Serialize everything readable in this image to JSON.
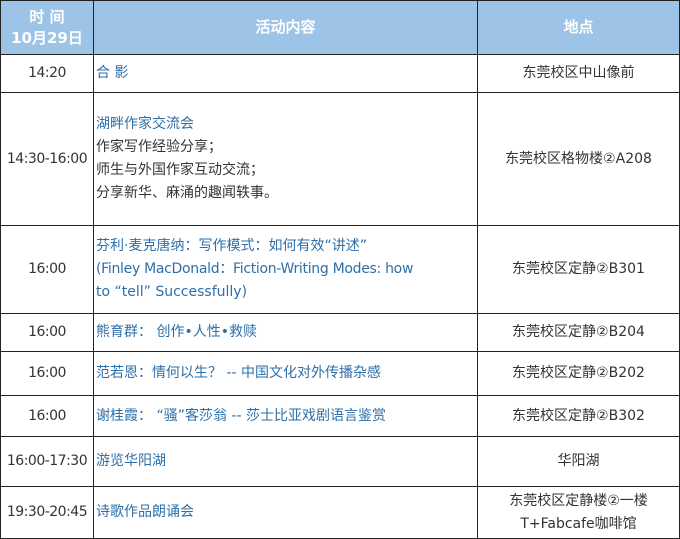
{
  "header": {
    "time_line1": "时 间",
    "time_line2": "10月29日",
    "activity": "活动内容",
    "location": "地点"
  },
  "colors": {
    "header_bg": "#9dc3e6",
    "activity_text": "#2e6fa8"
  },
  "rows": [
    {
      "time": "14:20",
      "activity": [
        "合  影"
      ],
      "location": [
        "东莞校区中山像前"
      ]
    },
    {
      "time": "14:30-16:00",
      "activity": [
        "湖畔作家交流会",
        "作家写作经验分享；",
        "师生与外国作家互动交流；",
        "分享新华、麻涌的趣闻轶事。"
      ],
      "location": [
        "东莞校区格物楼②A208"
      ]
    },
    {
      "time": "16:00",
      "activity": [
        "芬利·麦克唐纳：写作模式：如何有效“讲述”",
        "(Finley MacDonald：Fiction-Writing Modes: how",
        "to “tell” Successfully)"
      ],
      "location": [
        "东莞校区定静②B301"
      ]
    },
    {
      "time": "16:00",
      "activity": [
        "熊育群： 创作•人性•救赎"
      ],
      "location": [
        "东莞校区定静②B204"
      ]
    },
    {
      "time": "16:00",
      "activity": [
        "范若恩：情何以生？ -- 中国文化对外传播杂感"
      ],
      "location": [
        "东莞校区定静②B202"
      ]
    },
    {
      "time": "16:00",
      "activity": [
        "谢桂霞： “骚”客莎翁 -- 莎士比亚戏剧语言鉴赏"
      ],
      "location": [
        "东莞校区定静②B302"
      ]
    },
    {
      "time": "16:00-17:30",
      "activity": [
        "游览华阳湖"
      ],
      "location": [
        "华阳湖"
      ]
    },
    {
      "time": "19:30-20:45",
      "activity": [
        "诗歌作品朗诵会"
      ],
      "location": [
        "东莞校区定静楼②一楼",
        "T+Fabcafe咖啡馆"
      ]
    }
  ]
}
